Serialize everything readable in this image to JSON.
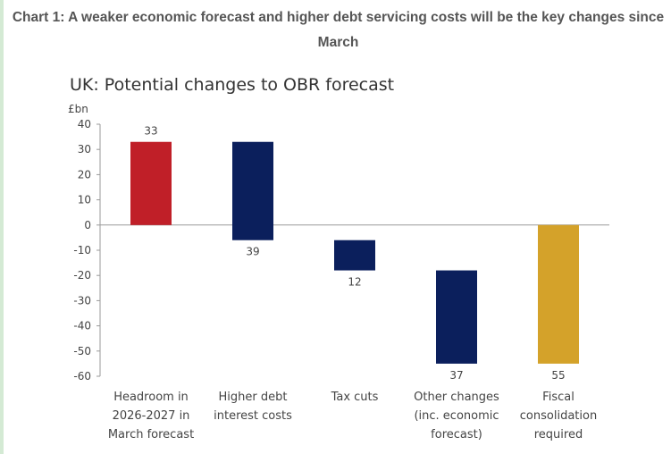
{
  "title": "Chart 1: A weaker economic forecast and higher debt servicing costs will be the key changes since March",
  "chart_data": {
    "type": "bar",
    "subtitle": "UK: Potential changes to OBR forecast",
    "ylabel": "£bn",
    "ylim": [
      -60,
      40
    ],
    "yticks": [
      40,
      30,
      20,
      10,
      0,
      -10,
      -20,
      -30,
      -40,
      -50,
      -60
    ],
    "grid": false,
    "waterfall": true,
    "categories": [
      [
        "Headroom in",
        "2026-2027 in",
        "March forecast"
      ],
      [
        "Higher debt",
        "interest costs"
      ],
      [
        "Tax cuts"
      ],
      [
        "Other changes",
        "(inc. economic",
        "forecast)"
      ],
      [
        "Fiscal",
        "consolidation",
        "required"
      ]
    ],
    "bars": [
      {
        "start": 0,
        "end": 33,
        "label": "33",
        "color": "#c01f28"
      },
      {
        "start": 33,
        "end": -6,
        "label": "39",
        "color": "#0b1f5c"
      },
      {
        "start": -6,
        "end": -18,
        "label": "12",
        "color": "#0b1f5c"
      },
      {
        "start": -18,
        "end": -55,
        "label": "37",
        "color": "#0b1f5c"
      },
      {
        "start": 0,
        "end": -55,
        "label": "55",
        "color": "#d4a22a"
      }
    ]
  }
}
